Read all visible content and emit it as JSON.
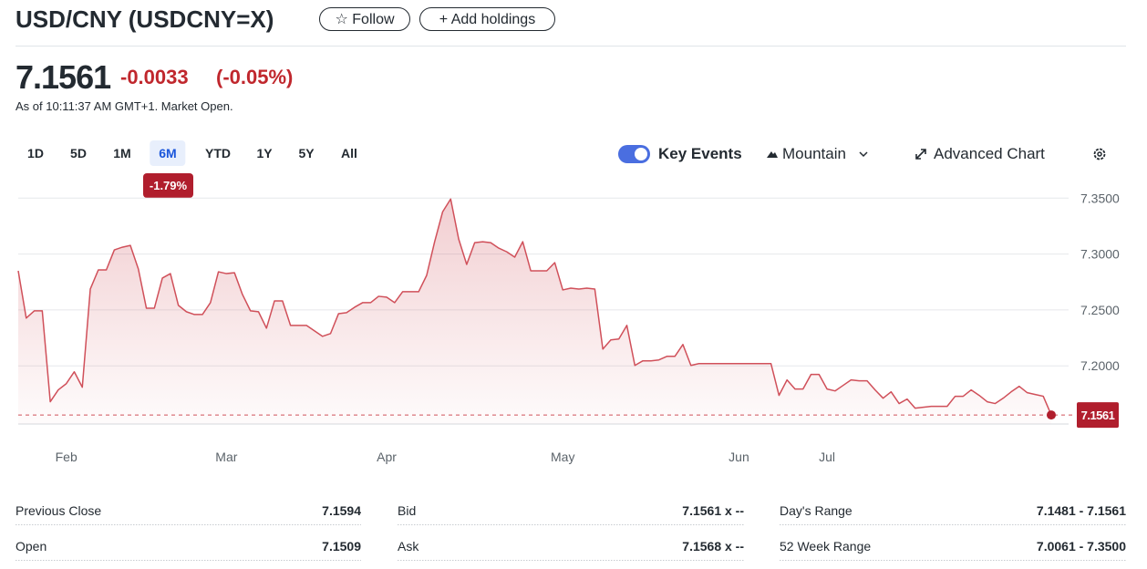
{
  "header": {
    "title": "USD/CNY (USDCNY=X)",
    "follow": "Follow",
    "add_holdings": "Add holdings"
  },
  "quote": {
    "price": "7.1561",
    "change": "-0.0033",
    "change_pct": "(-0.05%)",
    "as_of": "As of 10:11:37 AM GMT+1. Market Open."
  },
  "ranges": [
    "1D",
    "5D",
    "1M",
    "6M",
    "YTD",
    "1Y",
    "5Y",
    "All"
  ],
  "selected_range": 3,
  "range_change": "-1.79%",
  "toolbar": {
    "key_events": "Key Events",
    "chart_style": "Mountain",
    "advanced_chart": "Advanced Chart"
  },
  "stats": [
    [
      "Previous Close",
      "7.1594"
    ],
    [
      "Bid",
      "7.1561 x --"
    ],
    [
      "Day's Range",
      "7.1481 - 7.1561"
    ],
    [
      "Open",
      "7.1509"
    ],
    [
      "Ask",
      "7.1568 x --"
    ],
    [
      "52 Week Range",
      "7.0061 - 7.3500"
    ]
  ],
  "chart_data": {
    "type": "area",
    "color": "#d0505a",
    "grid": true,
    "ylim": [
      7.148,
      7.36
    ],
    "yticks": [
      {
        "value": 7.2,
        "label": "7.2000"
      },
      {
        "value": 7.25,
        "label": "7.2500"
      },
      {
        "value": 7.3,
        "label": "7.3000"
      },
      {
        "value": 7.35,
        "label": "7.3500"
      }
    ],
    "categories": [
      null,
      null,
      null,
      null,
      null,
      null,
      "Feb",
      null,
      null,
      null,
      null,
      null,
      null,
      null,
      null,
      null,
      null,
      null,
      null,
      null,
      null,
      null,
      null,
      null,
      null,
      null,
      "Mar",
      null,
      null,
      null,
      null,
      null,
      null,
      null,
      null,
      null,
      null,
      null,
      null,
      null,
      null,
      null,
      null,
      null,
      null,
      null,
      "Apr",
      null,
      null,
      null,
      null,
      null,
      null,
      null,
      null,
      null,
      null,
      null,
      null,
      null,
      null,
      null,
      null,
      null,
      null,
      null,
      null,
      null,
      "May",
      null,
      null,
      null,
      null,
      null,
      null,
      null,
      null,
      null,
      null,
      null,
      null,
      null,
      null,
      null,
      null,
      null,
      null,
      null,
      null,
      null,
      "Jun",
      null,
      null,
      null,
      null,
      null,
      null,
      null,
      null,
      null,
      null,
      "Jul",
      null,
      null,
      null,
      null,
      null,
      null,
      null,
      null,
      null,
      null,
      null,
      null,
      null,
      null,
      null,
      null,
      null,
      null,
      null,
      null,
      null,
      null,
      null,
      null,
      null,
      null,
      null,
      null
    ],
    "values": [
      7.285,
      7.2427,
      7.2492,
      7.2492,
      7.1679,
      7.1785,
      7.1841,
      7.1947,
      7.1809,
      7.2687,
      7.2858,
      7.2858,
      7.3037,
      7.3061,
      7.3077,
      7.2866,
      7.2516,
      7.2516,
      7.2785,
      7.2825,
      7.2541,
      7.2484,
      7.2459,
      7.2459,
      7.2565,
      7.2841,
      7.2825,
      7.2833,
      7.2638,
      7.2492,
      7.2484,
      7.2337,
      7.2581,
      7.2581,
      7.2362,
      7.2362,
      7.2362,
      7.2313,
      7.2264,
      7.2289,
      7.2467,
      7.2476,
      7.2524,
      7.2565,
      7.2565,
      7.2622,
      7.2614,
      7.2565,
      7.2663,
      7.2663,
      7.2663,
      7.2809,
      7.311,
      7.3378,
      7.3492,
      7.3134,
      7.2907,
      7.3102,
      7.311,
      7.3102,
      7.3053,
      7.302,
      7.2972,
      7.311,
      7.285,
      7.285,
      7.285,
      7.2923,
      7.2679,
      7.2695,
      7.2687,
      7.2695,
      7.2687,
      7.215,
      7.2232,
      7.224,
      7.2362,
      7.2004,
      7.2045,
      7.2045,
      7.2053,
      7.2085,
      7.2085,
      7.2191,
      7.2004,
      7.202,
      7.202,
      7.202,
      7.202,
      7.202,
      7.202,
      7.202,
      7.202,
      7.202,
      7.202,
      7.1736,
      7.1874,
      7.1793,
      7.1793,
      7.1923,
      7.1923,
      7.1793,
      7.1776,
      7.1825,
      7.1874,
      7.1866,
      7.1866,
      7.1785,
      7.1711,
      7.1768,
      7.1663,
      7.1703,
      7.1622,
      7.163,
      7.1638,
      7.1638,
      7.1638,
      7.1728,
      7.1728,
      7.1785,
      7.1736,
      7.1679,
      7.1663,
      7.1711,
      7.1768,
      7.1817,
      7.176,
      7.1744,
      7.1728,
      7.1561
    ]
  }
}
